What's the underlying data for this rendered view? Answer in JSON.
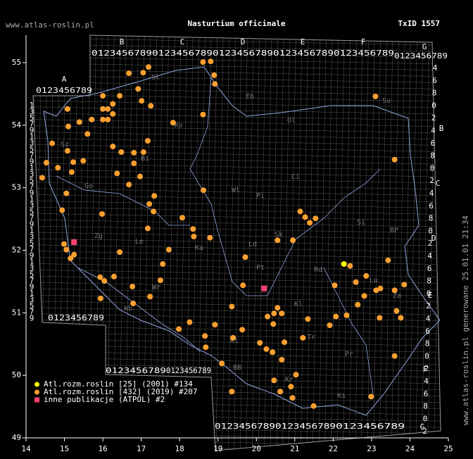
{
  "header": {
    "site": "www.atlas-roslin.pl",
    "title": "Nasturtium officinale",
    "taxon_id": "TxID 1557",
    "side_note": "www.atlas-roslin.pl generowane 25.01.01 21:34"
  },
  "map": {
    "xlim": [
      14,
      25
    ],
    "ylim": [
      49,
      55
    ],
    "xticks": [
      14,
      15,
      16,
      17,
      18,
      19,
      20,
      21,
      22,
      23,
      24,
      25
    ],
    "yticks": [
      49,
      50,
      51,
      52,
      53,
      54,
      55
    ],
    "grid_letters": [
      "A",
      "B",
      "C",
      "D",
      "E",
      "F",
      "G"
    ],
    "grid_digits": "0123456789",
    "row_digits_odd": [
      "1",
      "3",
      "5",
      "7",
      "9"
    ],
    "row_digits_even": [
      "0",
      "2",
      "4",
      "6",
      "8"
    ],
    "regions": [
      "Sl",
      "Eb",
      "Ol",
      "Su",
      "Ko",
      "Sz",
      "Bi",
      "Ci",
      "Wl",
      "Pi",
      "Go",
      "Zg",
      "Le",
      "Ka",
      "Ld",
      "Sk",
      "Si",
      "BP",
      "Pt",
      "Rd",
      "Lu",
      "Wr",
      "Wb",
      "Kl",
      "Za",
      "Kt",
      "Tr",
      "Pr",
      "BB",
      "Kr",
      "Ks"
    ],
    "layers": [
      {
        "name": "Atl.rozm.roslin [25] (2001) #134",
        "color": "#ffff00",
        "shape": "circle",
        "points": [
          [
            22.28,
            51.78
          ]
        ]
      },
      {
        "name": "Atl.rozm.roslin [432] (2019) #207",
        "color": "#ffa030",
        "shape": "circle",
        "points": [
          [
            17.19,
            54.93
          ],
          [
            17.05,
            54.84
          ],
          [
            16.68,
            54.83
          ],
          [
            16.92,
            54.58
          ],
          [
            17.01,
            54.39
          ],
          [
            17.25,
            54.31
          ],
          [
            16.44,
            54.47
          ],
          [
            16.0,
            54.47
          ],
          [
            16.0,
            54.26
          ],
          [
            16.13,
            54.26
          ],
          [
            16.26,
            54.34
          ],
          [
            16.26,
            54.18
          ],
          [
            16.13,
            54.09
          ],
          [
            16.0,
            54.09
          ],
          [
            15.08,
            54.26
          ],
          [
            15.1,
            53.98
          ],
          [
            15.39,
            54.05
          ],
          [
            15.71,
            54.09
          ],
          [
            15.6,
            53.86
          ],
          [
            14.68,
            53.71
          ],
          [
            14.53,
            53.4
          ],
          [
            14.83,
            53.32
          ],
          [
            15.08,
            53.59
          ],
          [
            15.23,
            53.41
          ],
          [
            15.49,
            53.43
          ],
          [
            15.19,
            53.25
          ],
          [
            14.42,
            53.16
          ],
          [
            16.26,
            53.66
          ],
          [
            16.48,
            53.57
          ],
          [
            16.81,
            53.56
          ],
          [
            17.06,
            53.57
          ],
          [
            17.17,
            53.75
          ],
          [
            16.81,
            53.39
          ],
          [
            16.37,
            53.23
          ],
          [
            17.83,
            54.04
          ],
          [
            18.61,
            54.17
          ],
          [
            18.61,
            55.01
          ],
          [
            18.81,
            55.02
          ],
          [
            18.9,
            54.8
          ],
          [
            18.92,
            54.66
          ],
          [
            18.62,
            52.96
          ],
          [
            17.34,
            52.87
          ],
          [
            17.21,
            52.74
          ],
          [
            17.32,
            52.62
          ],
          [
            16.97,
            53.18
          ],
          [
            16.68,
            53.05
          ],
          [
            18.07,
            52.52
          ],
          [
            18.35,
            52.34
          ],
          [
            18.37,
            52.22
          ],
          [
            18.79,
            52.2
          ],
          [
            17.17,
            52.35
          ],
          [
            15.98,
            52.58
          ],
          [
            14.94,
            52.64
          ],
          [
            15.05,
            52.91
          ],
          [
            14.99,
            52.1
          ],
          [
            15.25,
            51.93
          ],
          [
            15.05,
            52.01
          ],
          [
            15.16,
            51.87
          ],
          [
            16.44,
            51.97
          ],
          [
            17.72,
            52.01
          ],
          [
            17.56,
            51.78
          ],
          [
            15.93,
            51.57
          ],
          [
            16.04,
            51.51
          ],
          [
            16.29,
            51.58
          ],
          [
            16.77,
            51.42
          ],
          [
            17.5,
            51.52
          ],
          [
            15.94,
            51.23
          ],
          [
            16.79,
            51.15
          ],
          [
            17.23,
            51.26
          ],
          [
            17.98,
            50.74
          ],
          [
            18.26,
            50.85
          ],
          [
            18.66,
            50.63
          ],
          [
            18.68,
            50.45
          ],
          [
            18.92,
            50.81
          ],
          [
            19.1,
            50.19
          ],
          [
            19.39,
            50.6
          ],
          [
            19.36,
            51.1
          ],
          [
            19.63,
            50.73
          ],
          [
            20.09,
            50.52
          ],
          [
            20.26,
            50.42
          ],
          [
            20.42,
            50.37
          ],
          [
            20.73,
            50.53
          ],
          [
            20.66,
            50.25
          ],
          [
            20.46,
            49.92
          ],
          [
            21.03,
            50.01
          ],
          [
            20.9,
            49.82
          ],
          [
            20.94,
            49.64
          ],
          [
            20.62,
            49.74
          ],
          [
            21.49,
            49.51
          ],
          [
            19.36,
            49.74
          ],
          [
            20.29,
            50.94
          ],
          [
            20.46,
            50.99
          ],
          [
            20.66,
            50.99
          ],
          [
            20.55,
            51.08
          ],
          [
            20.44,
            50.82
          ],
          [
            21.34,
            50.9
          ],
          [
            21.21,
            50.6
          ],
          [
            19.71,
            51.89
          ],
          [
            19.65,
            51.44
          ],
          [
            20.55,
            52.16
          ],
          [
            20.95,
            52.16
          ],
          [
            21.14,
            52.62
          ],
          [
            21.39,
            52.44
          ],
          [
            21.27,
            52.53
          ],
          [
            21.54,
            52.51
          ],
          [
            22.04,
            51.44
          ],
          [
            22.44,
            51.75
          ],
          [
            22.59,
            51.49
          ],
          [
            22.86,
            51.59
          ],
          [
            23.23,
            51.39
          ],
          [
            23.12,
            51.36
          ],
          [
            23.6,
            51.36
          ],
          [
            23.85,
            51.45
          ],
          [
            23.43,
            51.84
          ],
          [
            22.64,
            51.13
          ],
          [
            22.35,
            50.96
          ],
          [
            22.07,
            50.94
          ],
          [
            21.91,
            50.8
          ],
          [
            23.1,
            54.46
          ],
          [
            23.6,
            53.45
          ],
          [
            22.99,
            49.66
          ],
          [
            23.6,
            50.31
          ],
          [
            23.21,
            50.92
          ],
          [
            23.65,
            51.03
          ],
          [
            23.76,
            50.92
          ],
          [
            22.81,
            51.27
          ]
        ]
      },
      {
        "name": "inne publikacje (ATPOL) #2",
        "color": "#ff4070",
        "shape": "square",
        "points": [
          [
            15.25,
            52.13
          ],
          [
            20.2,
            51.39
          ]
        ]
      }
    ]
  }
}
